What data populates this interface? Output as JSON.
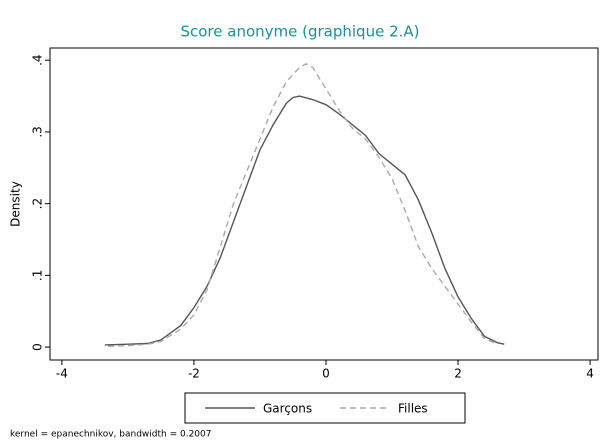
{
  "chart_data": {
    "type": "line",
    "title": "Score anonyme (graphique 2.A)",
    "ylabel": "Density",
    "note": "kernel = epanechnikov, bandwidth = 0.2007",
    "xlim": [
      -4.18,
      4.12
    ],
    "xticks": [
      -4,
      -2,
      0,
      2,
      4
    ],
    "ylim": [
      -0.018,
      0.417
    ],
    "yticks": [
      0,
      {
        "value": 0.1,
        "label": ".1"
      },
      {
        "value": 0.2,
        "label": ".2"
      },
      {
        "value": 0.3,
        "label": ".3"
      },
      {
        "value": 0.4,
        "label": ".4"
      }
    ],
    "series": [
      {
        "name": "Garçons",
        "color": "#555555",
        "dashed": false,
        "x": [
          -3.35,
          -3,
          -2.7,
          -2.5,
          -2.2,
          -2,
          -1.8,
          -1.6,
          -1.4,
          -1.2,
          -1,
          -0.8,
          -0.6,
          -0.5,
          -0.4,
          -0.2,
          0,
          0.2,
          0.4,
          0.6,
          0.8,
          1,
          1.2,
          1.4,
          1.6,
          1.8,
          2,
          2.2,
          2.4,
          2.6,
          2.7
        ],
        "values": [
          0.003,
          0.004,
          0.005,
          0.01,
          0.03,
          0.055,
          0.085,
          0.125,
          0.175,
          0.225,
          0.275,
          0.31,
          0.34,
          0.348,
          0.35,
          0.345,
          0.338,
          0.325,
          0.31,
          0.295,
          0.27,
          0.255,
          0.24,
          0.205,
          0.16,
          0.11,
          0.07,
          0.04,
          0.015,
          0.006,
          0.004
        ]
      },
      {
        "name": "Filles",
        "color": "#aaaaaa",
        "dashed": true,
        "x": [
          -3.3,
          -3,
          -2.7,
          -2.5,
          -2.2,
          -2,
          -1.8,
          -1.6,
          -1.4,
          -1.2,
          -1,
          -0.8,
          -0.6,
          -0.4,
          -0.3,
          -0.2,
          0,
          0.2,
          0.4,
          0.6,
          0.8,
          1,
          1.2,
          1.4,
          1.6,
          1.8,
          2,
          2.2,
          2.4,
          2.6
        ],
        "values": [
          0.001,
          0.002,
          0.004,
          0.008,
          0.025,
          0.045,
          0.08,
          0.14,
          0.2,
          0.245,
          0.29,
          0.335,
          0.37,
          0.39,
          0.395,
          0.39,
          0.36,
          0.33,
          0.305,
          0.29,
          0.265,
          0.235,
          0.19,
          0.14,
          0.11,
          0.085,
          0.06,
          0.035,
          0.012,
          0.004
        ]
      }
    ]
  }
}
